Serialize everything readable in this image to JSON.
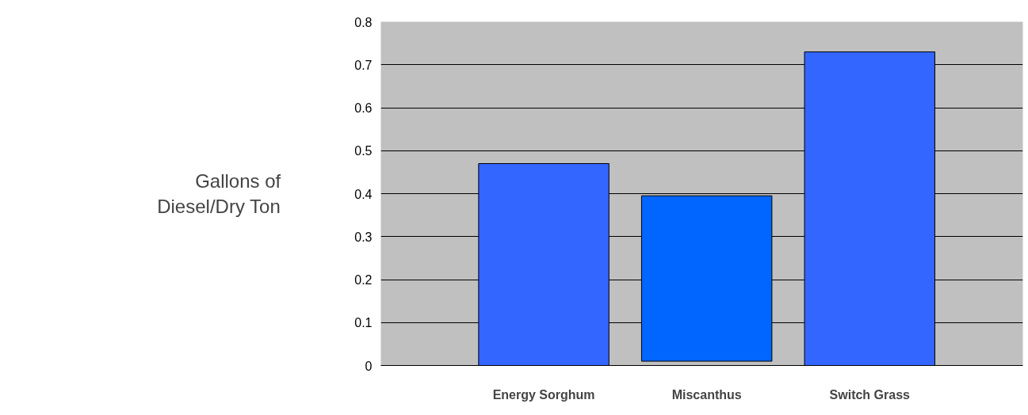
{
  "chart_data": {
    "type": "bar",
    "ylabel": "Gallons of Diesel/Dry Ton",
    "categories": [
      "Energy Sorghum",
      "Miscanthus",
      "Switch Grass"
    ],
    "values": [
      0.47,
      0.385,
      0.73
    ],
    "base": [
      0,
      0.01,
      0
    ],
    "colors": [
      "#3366ff",
      "#0066ff",
      "#3366ff"
    ],
    "ylim": [
      0,
      0.8
    ],
    "yticks": [
      0,
      0.1,
      0.2,
      0.3,
      0.4,
      0.5,
      0.6,
      0.7,
      0.8
    ],
    "grid": "y"
  }
}
